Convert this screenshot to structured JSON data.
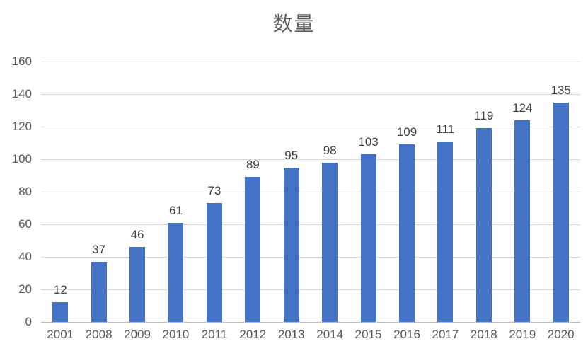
{
  "chart_data": {
    "type": "bar",
    "title": "数量",
    "categories": [
      "2001",
      "2008",
      "2009",
      "2010",
      "2011",
      "2012",
      "2013",
      "2014",
      "2015",
      "2016",
      "2017",
      "2018",
      "2019",
      "2020"
    ],
    "values": [
      12,
      37,
      46,
      61,
      73,
      89,
      95,
      98,
      103,
      109,
      111,
      119,
      124,
      135
    ],
    "xlabel": "",
    "ylabel": "",
    "ylim": [
      0,
      160
    ],
    "ytick_step": 20,
    "grid": true,
    "legend": "none",
    "data_labels": true,
    "colors": {
      "bar": "#4472c4",
      "gridline": "#d9d9d9",
      "axis_line": "#bfbfbf",
      "tick_text": "#595959",
      "data_label_text": "#404040",
      "title_text": "#595959",
      "background": "#ffffff"
    }
  }
}
